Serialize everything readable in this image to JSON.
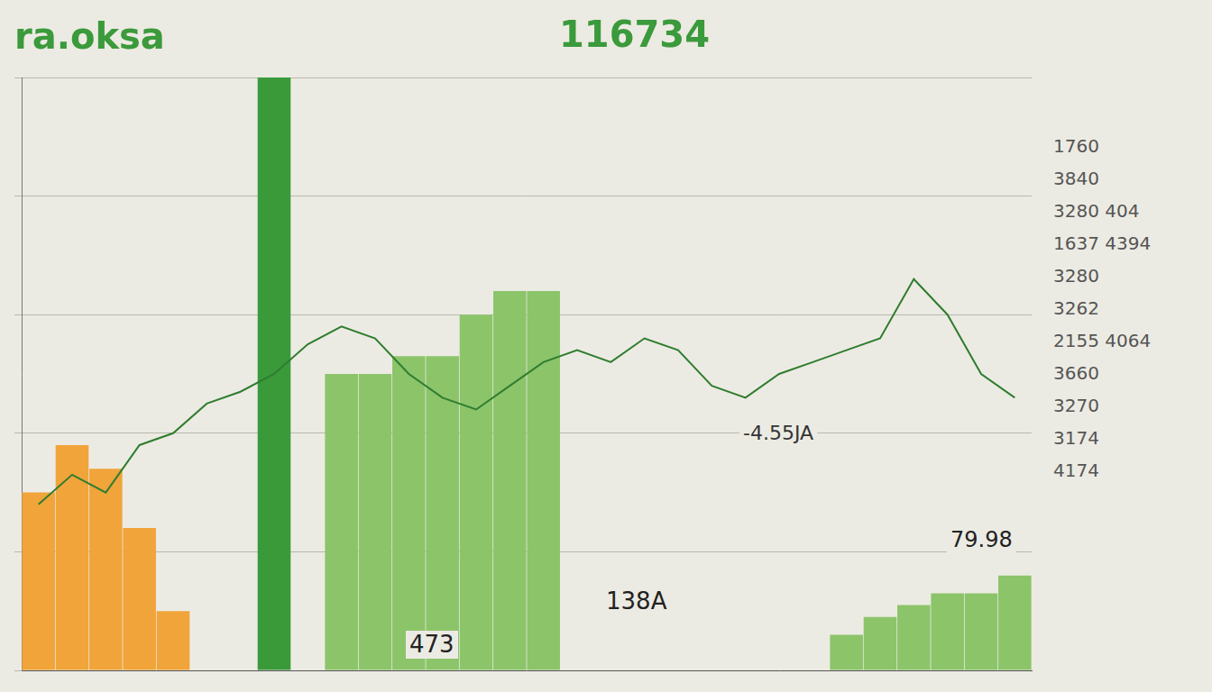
{
  "chart_data": {
    "type": "bar",
    "title": "ra.oksa",
    "categories": [
      null,
      null,
      null,
      null,
      null,
      null,
      null,
      null,
      null,
      null,
      null,
      null,
      null,
      null,
      null,
      null,
      null,
      null,
      null,
      null,
      null,
      null,
      null,
      null,
      null,
      null,
      null,
      null,
      null,
      null
    ],
    "series": [
      {
        "type": "bar",
        "color": "#f0a43a",
        "values": [
          30,
          38,
          34,
          24,
          10,
          null,
          null,
          null,
          null,
          null,
          null,
          null,
          null,
          null,
          null,
          null,
          null,
          null,
          null,
          null,
          null,
          null,
          null,
          null,
          null,
          null,
          null,
          null,
          null,
          null
        ]
      },
      {
        "type": "bar",
        "color": "#3a9a3a",
        "values": [
          null,
          null,
          null,
          null,
          null,
          null,
          null,
          100,
          null,
          null,
          null,
          null,
          null,
          null,
          null,
          null,
          null,
          null,
          null,
          null,
          null,
          null,
          null,
          null,
          null,
          null,
          null,
          null,
          null,
          null
        ]
      },
      {
        "type": "bar",
        "color": "#8cc46a",
        "values": [
          null,
          null,
          null,
          null,
          null,
          null,
          null,
          null,
          null,
          50,
          50,
          53,
          53,
          60,
          64,
          64,
          null,
          null,
          null,
          null,
          null,
          null,
          null,
          null,
          6,
          9,
          11,
          13,
          13,
          16
        ]
      },
      {
        "type": "line",
        "color": "#2f7d2f",
        "values": [
          28,
          33,
          30,
          38,
          40,
          45,
          47,
          50,
          55,
          58,
          56,
          50,
          46,
          44,
          48,
          52,
          54,
          52,
          56,
          54,
          48,
          46,
          50,
          52,
          54,
          56,
          66,
          60,
          50,
          46
        ]
      }
    ],
    "ylim": [
      0,
      100
    ],
    "yticks": [
      0,
      20,
      40,
      60,
      80,
      100
    ],
    "grid": true,
    "tick_labels": false,
    "annotations": [
      "116734",
      "-4.55JA",
      "138A",
      "473",
      "79.98",
      "1760",
      "3840",
      "3280 404",
      "1637 4394",
      "3280",
      "3262",
      "2155 4064",
      "3660",
      "3270",
      "3174",
      "4174"
    ]
  }
}
